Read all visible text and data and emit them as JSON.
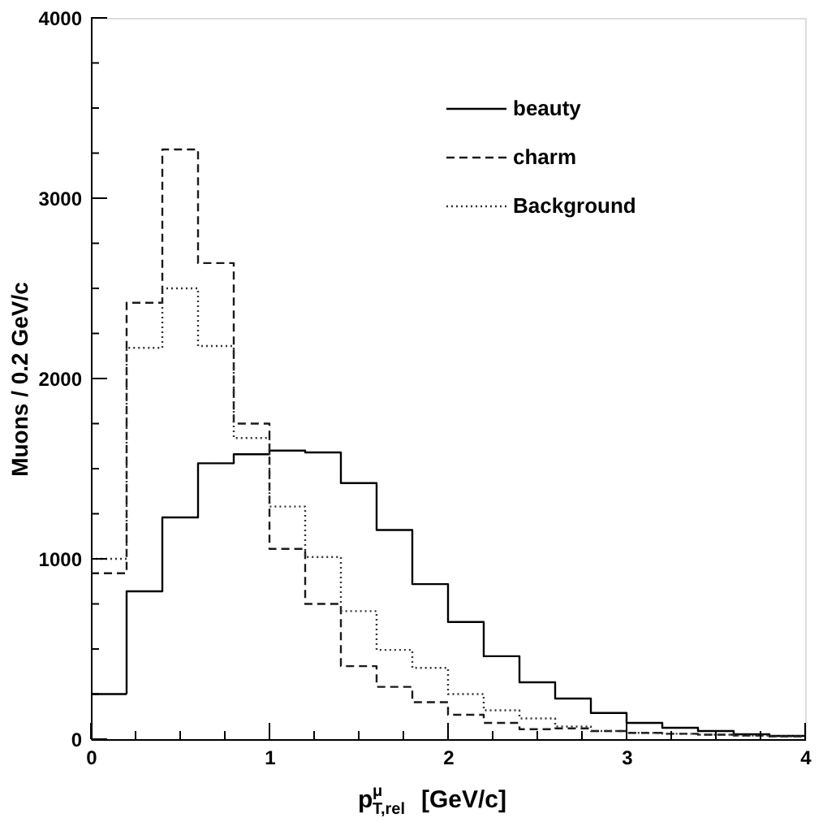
{
  "chart_data": {
    "type": "histogram",
    "xlabel": "p$^{μ}$$_{T,rel}$ [GeV/c]",
    "ylabel": "Muons / 0.2 GeV/c",
    "bins": [
      0,
      0.2,
      0.4,
      0.6,
      0.8,
      1.0,
      1.2,
      1.4,
      1.6,
      1.8,
      2.0,
      2.2,
      2.4,
      2.6,
      2.8,
      3.0,
      3.2,
      3.4,
      3.6,
      3.8,
      4.0
    ],
    "series": [
      {
        "name": "beauty",
        "color": "#000000",
        "line_style": "solid",
        "values": [
          250,
          820,
          1230,
          1530,
          1580,
          1600,
          1590,
          1420,
          1160,
          860,
          650,
          460,
          315,
          225,
          145,
          90,
          63,
          45,
          27,
          18
        ]
      },
      {
        "name": "charm",
        "color": "#1a1a1a",
        "line_style": "dashed",
        "values": [
          920,
          2420,
          3270,
          2640,
          1750,
          1055,
          750,
          405,
          290,
          205,
          135,
          90,
          55,
          60,
          45,
          35,
          30,
          25,
          20,
          15
        ]
      },
      {
        "name": "Background",
        "color": "#333333",
        "line_style": "dotted",
        "values": [
          1000,
          2170,
          2500,
          2180,
          1670,
          1290,
          1010,
          710,
          495,
          395,
          250,
          160,
          115,
          70,
          45,
          35,
          30,
          25,
          20,
          15
        ]
      }
    ],
    "xlim": [
      0,
      4
    ],
    "ylim": [
      0,
      4000
    ],
    "xticks": [
      0,
      {
        "value": 0.25,
        "label": null
      },
      {
        "value": 0.5,
        "label": null
      },
      {
        "value": 0.75,
        "label": null
      },
      1,
      {
        "value": 1.25,
        "label": null
      },
      {
        "value": 1.5,
        "label": null
      },
      {
        "value": 1.75,
        "label": null
      },
      2,
      {
        "value": 2.25,
        "label": null
      },
      {
        "value": 2.5,
        "label": null
      },
      {
        "value": 2.75,
        "label": null
      },
      3,
      {
        "value": 3.25,
        "label": null
      },
      {
        "value": 3.5,
        "label": null
      },
      {
        "value": 3.75,
        "label": null
      },
      4
    ],
    "yticks": [
      0,
      {
        "value": 250,
        "label": null
      },
      {
        "value": 500,
        "label": null
      },
      {
        "value": 750,
        "label": null
      },
      1000,
      {
        "value": 1250,
        "label": null
      },
      {
        "value": 1500,
        "label": null
      },
      {
        "value": 1750,
        "label": null
      },
      2000,
      {
        "value": 2250,
        "label": null
      },
      {
        "value": 2500,
        "label": null
      },
      {
        "value": 2750,
        "label": null
      },
      3000,
      {
        "value": 3250,
        "label": null
      },
      {
        "value": 3500,
        "label": null
      },
      {
        "value": 3750,
        "label": null
      },
      4000
    ],
    "legend": "top right",
    "grid": false
  }
}
